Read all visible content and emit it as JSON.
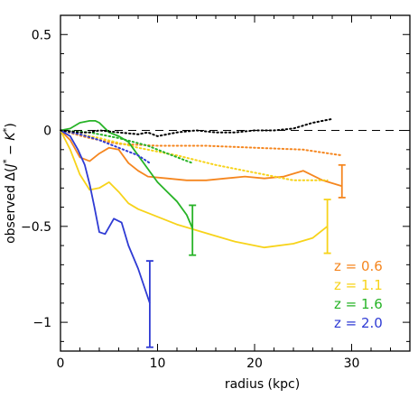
{
  "chart_data": {
    "type": "line",
    "xlabel": "radius (kpc)",
    "ylabel": {
      "prefix": "observed Δ(",
      "j": "J",
      "mid": " − ",
      "k": "K",
      "suffix": ")",
      "star": "*"
    },
    "xlim": [
      0,
      36
    ],
    "ylim": [
      -1.15,
      0.6
    ],
    "x_ticks": [
      0,
      10,
      20,
      30
    ],
    "y_ticks": [
      {
        "value": 0.5,
        "label": "0.5"
      },
      {
        "value": 0,
        "label": "0"
      },
      {
        "value": -0.5,
        "label": "−0.5"
      },
      {
        "value": -1,
        "label": "−1"
      }
    ],
    "grid": false,
    "legend_position": "bottom-right",
    "zero_line": {
      "y": 0,
      "style": "dashed"
    },
    "series": [
      {
        "name": "z = 0.6",
        "color": "#f5861f",
        "solid": [
          [
            0,
            0
          ],
          [
            1,
            -0.05
          ],
          [
            2,
            -0.14
          ],
          [
            3,
            -0.16
          ],
          [
            4,
            -0.12
          ],
          [
            5,
            -0.09
          ],
          [
            6,
            -0.1
          ],
          [
            7,
            -0.17
          ],
          [
            8,
            -0.21
          ],
          [
            9,
            -0.24
          ],
          [
            11,
            -0.25
          ],
          [
            13,
            -0.26
          ],
          [
            15,
            -0.26
          ],
          [
            17,
            -0.25
          ],
          [
            19,
            -0.24
          ],
          [
            21,
            -0.25
          ],
          [
            23,
            -0.24
          ],
          [
            25,
            -0.21
          ],
          [
            27,
            -0.26
          ],
          [
            29,
            -0.29
          ]
        ],
        "dotted": [
          [
            0,
            0
          ],
          [
            3,
            -0.04
          ],
          [
            6,
            -0.07
          ],
          [
            10,
            -0.08
          ],
          [
            15,
            -0.08
          ],
          [
            20,
            -0.09
          ],
          [
            25,
            -0.1
          ],
          [
            29,
            -0.13
          ]
        ],
        "error_bar": {
          "x": 29,
          "low": -0.35,
          "high": -0.18
        }
      },
      {
        "name": "z = 1.1",
        "color": "#f7d31a",
        "solid": [
          [
            0,
            0
          ],
          [
            1,
            -0.1
          ],
          [
            2,
            -0.23
          ],
          [
            3,
            -0.31
          ],
          [
            4,
            -0.3
          ],
          [
            5,
            -0.27
          ],
          [
            6,
            -0.32
          ],
          [
            7,
            -0.38
          ],
          [
            8,
            -0.41
          ],
          [
            10,
            -0.45
          ],
          [
            12,
            -0.49
          ],
          [
            14,
            -0.52
          ],
          [
            16,
            -0.55
          ],
          [
            18,
            -0.58
          ],
          [
            21,
            -0.61
          ],
          [
            24,
            -0.59
          ],
          [
            26,
            -0.56
          ],
          [
            27.5,
            -0.5
          ]
        ],
        "dotted": [
          [
            0,
            0
          ],
          [
            4,
            -0.04
          ],
          [
            8,
            -0.09
          ],
          [
            12,
            -0.13
          ],
          [
            16,
            -0.18
          ],
          [
            20,
            -0.22
          ],
          [
            24,
            -0.26
          ],
          [
            27.5,
            -0.26
          ]
        ],
        "error_bar": {
          "x": 27.5,
          "low": -0.64,
          "high": -0.36
        }
      },
      {
        "name": "z = 1.6",
        "color": "#27b327",
        "solid": [
          [
            0,
            0
          ],
          [
            1,
            0.01
          ],
          [
            2,
            0.04
          ],
          [
            3,
            0.05
          ],
          [
            3.6,
            0.05
          ],
          [
            4,
            0.04
          ],
          [
            5,
            -0.01
          ],
          [
            6,
            -0.03
          ],
          [
            7,
            -0.06
          ],
          [
            8,
            -0.13
          ],
          [
            9,
            -0.2
          ],
          [
            10,
            -0.27
          ],
          [
            11,
            -0.32
          ],
          [
            12,
            -0.37
          ],
          [
            13,
            -0.44
          ],
          [
            13.6,
            -0.51
          ]
        ],
        "dotted": [
          [
            0,
            0
          ],
          [
            3,
            -0.01
          ],
          [
            6,
            -0.04
          ],
          [
            9,
            -0.08
          ],
          [
            11,
            -0.12
          ],
          [
            13.6,
            -0.17
          ]
        ],
        "error_bar": {
          "x": 13.6,
          "low": -0.65,
          "high": -0.39
        }
      },
      {
        "name": "z = 2.0",
        "color": "#2f3bd4",
        "solid": [
          [
            0,
            0
          ],
          [
            1,
            -0.03
          ],
          [
            1.8,
            -0.1
          ],
          [
            2.5,
            -0.18
          ],
          [
            3,
            -0.28
          ],
          [
            3.5,
            -0.4
          ],
          [
            4,
            -0.53
          ],
          [
            4.6,
            -0.54
          ],
          [
            5.5,
            -0.46
          ],
          [
            6.3,
            -0.48
          ],
          [
            7,
            -0.6
          ],
          [
            8,
            -0.72
          ],
          [
            9.2,
            -0.9
          ]
        ],
        "dotted": [
          [
            0,
            0
          ],
          [
            2,
            -0.02
          ],
          [
            4,
            -0.05
          ],
          [
            6,
            -0.09
          ],
          [
            8,
            -0.13
          ],
          [
            9.2,
            -0.17
          ]
        ],
        "error_bar": {
          "x": 9.2,
          "low": -1.13,
          "high": -0.68
        }
      },
      {
        "name": "",
        "color": "#000000",
        "solid": [],
        "dotted": [
          [
            0,
            0
          ],
          [
            2,
            -0.01
          ],
          [
            3,
            -0.01
          ],
          [
            4,
            0.0
          ],
          [
            6,
            -0.01
          ],
          [
            8,
            -0.02
          ],
          [
            9,
            -0.01
          ],
          [
            10,
            -0.03
          ],
          [
            11,
            -0.02
          ],
          [
            12,
            -0.01
          ],
          [
            14,
            0.0
          ],
          [
            16,
            -0.01
          ],
          [
            18,
            -0.01
          ],
          [
            20,
            0.0
          ],
          [
            22,
            0.0
          ],
          [
            24,
            0.01
          ],
          [
            26,
            0.04
          ],
          [
            28,
            0.06
          ]
        ],
        "error_bar": null
      }
    ]
  }
}
